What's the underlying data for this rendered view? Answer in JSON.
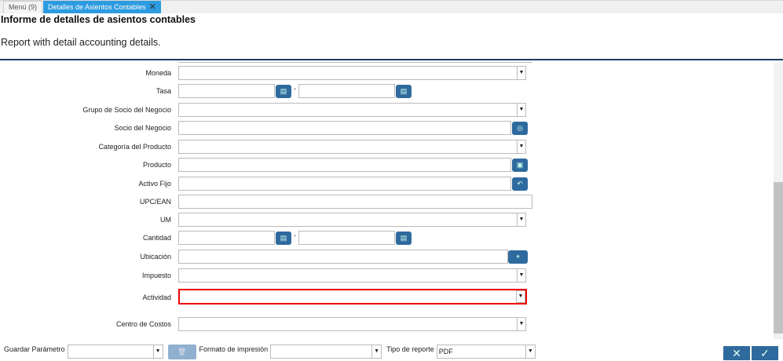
{
  "tabs": [
    {
      "label": "Menú (9)"
    },
    {
      "label": "Detalles de Asientos Contables"
    }
  ],
  "title": "Informe de detalles de asientos contables",
  "description": "Report with detail accounting details.",
  "fields": {
    "moneda": "Moneda",
    "tasa": "Tasa",
    "grupo": "Grupo de Socio del Negocio",
    "socio": "Socio del Negocio",
    "categoria": "Categoría del Producto",
    "producto": "Producto",
    "activo": "Activo Fijo",
    "upc": "UPC/EAN",
    "um": "UM",
    "cantidad": "Cantidad",
    "ubicacion": "Ubicación",
    "impuesto": "Impuesto",
    "actividad": "Actividad",
    "centro": "Centro de Costos"
  },
  "range_separator": "-",
  "bottom": {
    "guardar": "Guardar Parámetro",
    "formato": "Formato de impresión",
    "tipo": "Tipo de reporte",
    "tipo_value": "PDF"
  },
  "colors": {
    "accent": "#2f6a9e",
    "tab_active": "#2d9be0",
    "error": "#e00000"
  }
}
